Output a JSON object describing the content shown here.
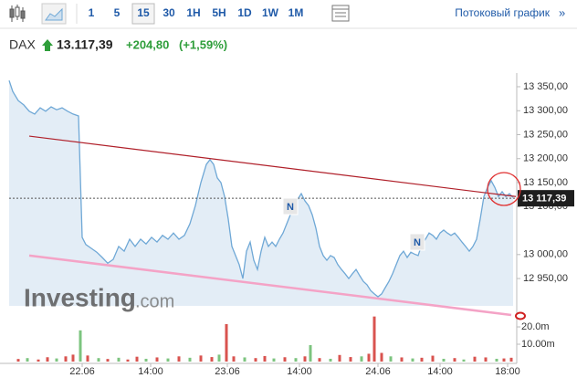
{
  "toolbar": {
    "intervals": [
      "1",
      "5",
      "15",
      "30",
      "1H",
      "5H",
      "1D",
      "1W",
      "1M"
    ],
    "selected_interval": "15",
    "stream_link": "Потоковый график",
    "more": "»"
  },
  "header": {
    "symbol": "DAX",
    "last": "13.117,39",
    "change": "+204,80",
    "change_pct": "(+1,59%)"
  },
  "chart_data": {
    "type": "line",
    "color": "#6fa8d6",
    "fill_color": "#dce9f4",
    "grid": false,
    "x": [
      0,
      4,
      10,
      16,
      22,
      28,
      34,
      40,
      46,
      52,
      58,
      64,
      70,
      76,
      80,
      84,
      90,
      96,
      102,
      108,
      114,
      120,
      126,
      132,
      138,
      144,
      150,
      156,
      162,
      168,
      174,
      180,
      186,
      192,
      198,
      204,
      210,
      216,
      220,
      224,
      228,
      232,
      236,
      240,
      244,
      248,
      252,
      256,
      260,
      264,
      268,
      272,
      276,
      280,
      284,
      288,
      292,
      296,
      300,
      304,
      308,
      312,
      316,
      320,
      324,
      328,
      332,
      336,
      340,
      344,
      348,
      352,
      356,
      360,
      364,
      368,
      372,
      376,
      380,
      384,
      388,
      392,
      396,
      400,
      404,
      408,
      412,
      416,
      420,
      424,
      428,
      432,
      436,
      440,
      444,
      448,
      452,
      456,
      460,
      464,
      468,
      472,
      476,
      480,
      484,
      488,
      492,
      496,
      500,
      504,
      508,
      512,
      516,
      520,
      524,
      528,
      532,
      536,
      540,
      544,
      548,
      552
    ],
    "values": [
      13363,
      13340,
      13321,
      13312,
      13299,
      13293,
      13306,
      13299,
      13308,
      13302,
      13306,
      13299,
      13293,
      13289,
      13036,
      13021,
      13013,
      13005,
      12994,
      12982,
      12990,
      13017,
      13007,
      13032,
      13017,
      13032,
      13022,
      13036,
      13026,
      13040,
      13032,
      13045,
      13032,
      13040,
      13064,
      13102,
      13150,
      13188,
      13198,
      13188,
      13160,
      13150,
      13121,
      13074,
      13017,
      12998,
      12979,
      12950,
      13007,
      13026,
      12988,
      12969,
      13007,
      13036,
      13017,
      13026,
      13017,
      13032,
      13045,
      13064,
      13083,
      13102,
      13115,
      13127,
      13112,
      13102,
      13083,
      13055,
      13017,
      12998,
      12988,
      12998,
      12994,
      12979,
      12969,
      12960,
      12950,
      12960,
      12969,
      12956,
      12944,
      12937,
      12925,
      12918,
      12912,
      12918,
      12931,
      12944,
      12960,
      12979,
      12998,
      13007,
      12994,
      13005,
      13001,
      12998,
      13021,
      13032,
      13045,
      13040,
      13032,
      13045,
      13051,
      13045,
      13040,
      13045,
      13036,
      13026,
      13017,
      13007,
      13017,
      13032,
      13074,
      13121,
      13140,
      13154,
      13140,
      13121,
      13131,
      13121,
      13127,
      13119
    ],
    "xlim": [
      0,
      552
    ],
    "ylim": [
      12893,
      13369
    ],
    "xticks": [
      {
        "value": 80,
        "label": "22.06"
      },
      {
        "value": 155,
        "label": "14:00"
      },
      {
        "value": 239,
        "label": "23.06"
      },
      {
        "value": 318,
        "label": "14:00"
      },
      {
        "value": 404,
        "label": "24.06"
      },
      {
        "value": 472,
        "label": "14:00"
      },
      {
        "value": 546,
        "label": "18:00"
      }
    ],
    "yticks": [
      {
        "value": 13350,
        "label": "13 350,00"
      },
      {
        "value": 13300,
        "label": "13 300,00"
      },
      {
        "value": 13250,
        "label": "13 250,00"
      },
      {
        "value": 13200,
        "label": "13 200,00"
      },
      {
        "value": 13150,
        "label": "13 150,00"
      },
      {
        "value": 13100,
        "label": "13 100,00"
      },
      {
        "value": 13000,
        "label": "13 000,00"
      },
      {
        "value": 12950,
        "label": "12 950,00"
      }
    ],
    "last_value": {
      "value": 13117.39,
      "label": "13 117,39"
    },
    "trendlines": [
      {
        "color": "#b0202a",
        "x": [
          22,
          555
        ],
        "y": [
          13247,
          13121
        ]
      },
      {
        "color": "#f4a3c6",
        "x": [
          22,
          550
        ],
        "y": [
          12998,
          12874
        ]
      }
    ],
    "news_markers": [
      "N",
      "N"
    ],
    "watermark": {
      "brand": "Investing",
      "suffix": ".com"
    },
    "volume": {
      "ylim": [
        0,
        29.5
      ],
      "yticks": [
        {
          "value": 20,
          "label": "20.0m"
        },
        {
          "value": 10,
          "label": "10.00m"
        }
      ],
      "x": [
        10,
        20,
        32,
        42,
        52,
        62,
        70,
        78,
        86,
        98,
        108,
        120,
        130,
        140,
        150,
        162,
        174,
        186,
        198,
        210,
        222,
        230,
        238,
        246,
        258,
        270,
        280,
        290,
        302,
        314,
        324,
        330,
        340,
        352,
        362,
        374,
        386,
        394,
        400,
        408,
        418,
        430,
        442,
        452,
        464,
        476,
        488,
        498,
        510,
        522,
        534,
        542,
        550
      ],
      "values": [
        1.5,
        2,
        1.2,
        2.5,
        1.8,
        3,
        4,
        18,
        3.5,
        2,
        1.5,
        2.2,
        1.2,
        2.8,
        1.6,
        2.4,
        1.8,
        3,
        2.2,
        3.5,
        2.6,
        4,
        21.6,
        3,
        2.4,
        2,
        3.2,
        1.8,
        2.5,
        2,
        3,
        9.5,
        2,
        1.6,
        3.8,
        2.6,
        3,
        4.5,
        26,
        5,
        3,
        2.4,
        1.8,
        2.2,
        3.4,
        1.6,
        2,
        1.2,
        2.8,
        2.4,
        1.6,
        1.8,
        2.2
      ],
      "colors": [
        "#d9534f",
        "#7cc47f",
        "#d9534f",
        "#d9534f",
        "#7cc47f",
        "#d9534f",
        "#d9534f",
        "#7cc47f",
        "#d9534f",
        "#7cc47f",
        "#d9534f",
        "#7cc47f",
        "#d9534f",
        "#d9534f",
        "#7cc47f",
        "#d9534f",
        "#7cc47f",
        "#d9534f",
        "#7cc47f",
        "#d9534f",
        "#d9534f",
        "#7cc47f",
        "#d9534f",
        "#d9534f",
        "#7cc47f",
        "#d9534f",
        "#d9534f",
        "#7cc47f",
        "#d9534f",
        "#7cc47f",
        "#d9534f",
        "#7cc47f",
        "#d9534f",
        "#7cc47f",
        "#d9534f",
        "#d9534f",
        "#7cc47f",
        "#d9534f",
        "#d9534f",
        "#d9534f",
        "#7cc47f",
        "#d9534f",
        "#7cc47f",
        "#d9534f",
        "#d9534f",
        "#7cc47f",
        "#d9534f",
        "#7cc47f",
        "#d9534f",
        "#d9534f",
        "#7cc47f",
        "#d9534f",
        "#d9534f"
      ]
    }
  }
}
